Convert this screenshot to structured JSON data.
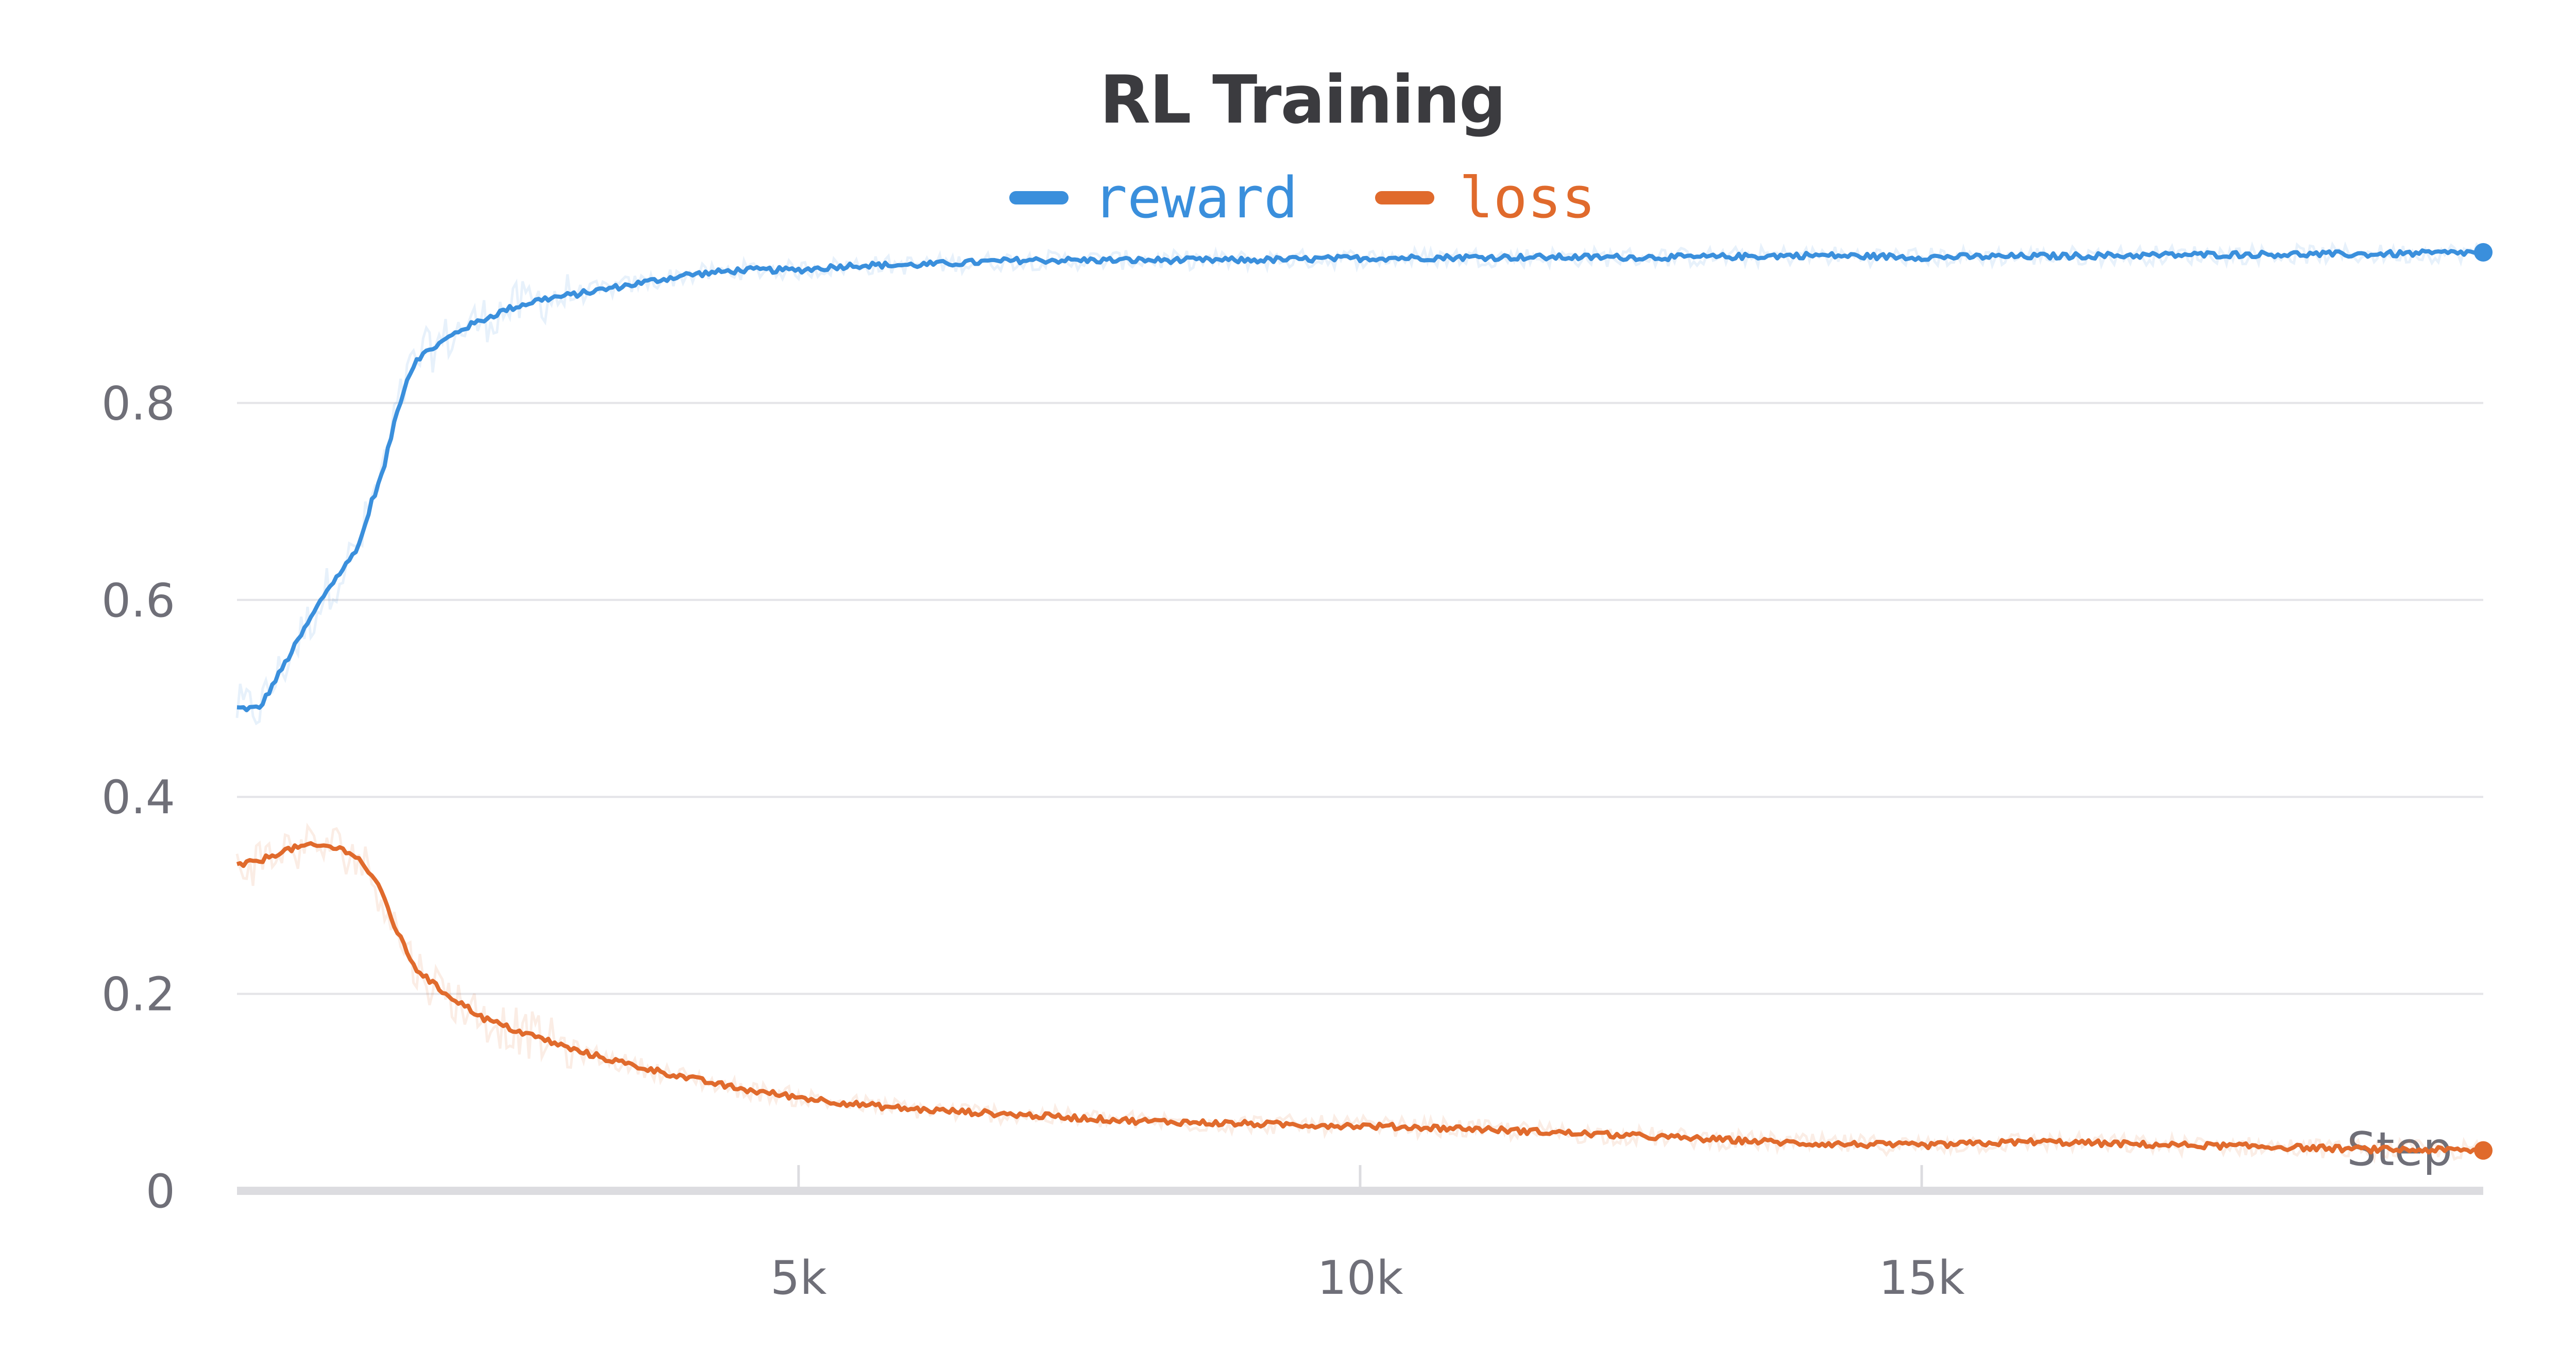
{
  "chart_data": {
    "type": "line",
    "title": "RL Training",
    "xlabel": "Step",
    "ylabel": "",
    "xlim": [
      0,
      20000
    ],
    "ylim": [
      0,
      1.0
    ],
    "grid": true,
    "legend_position": "top",
    "x_ticks": [
      {
        "value": 5000,
        "label": "5k"
      },
      {
        "value": 10000,
        "label": "10k"
      },
      {
        "value": 15000,
        "label": "15k"
      }
    ],
    "y_ticks": [
      {
        "value": 0,
        "label": "0"
      },
      {
        "value": 0.2,
        "label": "0.2"
      },
      {
        "value": 0.4,
        "label": "0.4"
      },
      {
        "value": 0.6,
        "label": "0.6"
      },
      {
        "value": 0.8,
        "label": "0.8"
      }
    ],
    "series": [
      {
        "name": "reward",
        "color": "#3a8fdc",
        "x": [
          0,
          200,
          400,
          600,
          800,
          1000,
          1100,
          1200,
          1300,
          1400,
          1500,
          1600,
          1800,
          2000,
          2200,
          2400,
          2700,
          3000,
          3500,
          4000,
          4500,
          5000,
          5500,
          6000,
          7000,
          8000,
          9000,
          10000,
          11000,
          12000,
          13000,
          14000,
          15000,
          16000,
          17000,
          18000,
          19000,
          20000
        ],
        "values": [
          0.49,
          0.49,
          0.53,
          0.57,
          0.61,
          0.64,
          0.66,
          0.7,
          0.73,
          0.78,
          0.82,
          0.845,
          0.86,
          0.875,
          0.885,
          0.895,
          0.905,
          0.91,
          0.92,
          0.93,
          0.935,
          0.935,
          0.94,
          0.94,
          0.945,
          0.945,
          0.945,
          0.947,
          0.948,
          0.948,
          0.948,
          0.95,
          0.948,
          0.949,
          0.95,
          0.951,
          0.951,
          0.953
        ]
      },
      {
        "name": "loss",
        "color": "#e06a2c",
        "x": [
          0,
          200,
          400,
          600,
          800,
          1000,
          1100,
          1200,
          1300,
          1400,
          1500,
          1600,
          1800,
          2000,
          2200,
          2500,
          2700,
          3000,
          3500,
          4000,
          4500,
          5000,
          5500,
          6000,
          7000,
          8000,
          9000,
          10000,
          11000,
          12000,
          13000,
          14000,
          15000,
          15500,
          16000,
          17000,
          18000,
          19000,
          20000
        ],
        "values": [
          0.33,
          0.335,
          0.345,
          0.35,
          0.35,
          0.345,
          0.335,
          0.32,
          0.3,
          0.27,
          0.245,
          0.225,
          0.205,
          0.19,
          0.175,
          0.162,
          0.155,
          0.143,
          0.128,
          0.115,
          0.103,
          0.095,
          0.088,
          0.083,
          0.077,
          0.071,
          0.068,
          0.066,
          0.063,
          0.058,
          0.053,
          0.048,
          0.046,
          0.048,
          0.05,
          0.047,
          0.045,
          0.042,
          0.041
        ]
      }
    ]
  }
}
